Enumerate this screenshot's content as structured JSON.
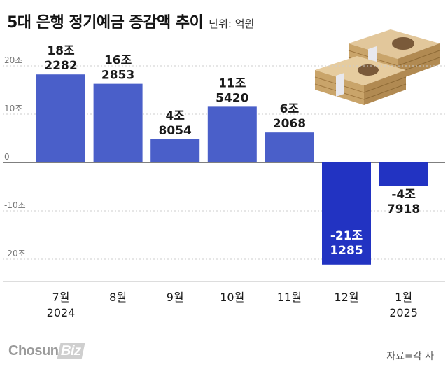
{
  "header": {
    "title": "5대 은행 정기예금 증감액 추이",
    "unit": "단위: 억원"
  },
  "footer": {
    "logo_main": "Chosun",
    "logo_box": "Biz",
    "source": "자료=각 사"
  },
  "chart_data": {
    "type": "bar",
    "title": "5대 은행 정기예금 증감액 추이",
    "unit": "억원",
    "categories": [
      "7월",
      "8월",
      "9월",
      "10월",
      "11월",
      "12월",
      "1월"
    ],
    "year_labels": [
      "2024",
      "",
      "",
      "",
      "",
      "",
      "2025"
    ],
    "values": [
      182282,
      162853,
      48054,
      115420,
      62068,
      -211285,
      -47918
    ],
    "value_labels": [
      [
        "18조",
        "2282"
      ],
      [
        "16조",
        "2853"
      ],
      [
        "4조",
        "8054"
      ],
      [
        "11조",
        "5420"
      ],
      [
        "6조",
        "2068"
      ],
      [
        "-21조",
        "1285"
      ],
      [
        "-4조",
        "7918"
      ]
    ],
    "yticks": [
      20,
      10,
      0,
      -10,
      -20
    ],
    "ytick_labels": [
      "20조",
      "10조",
      "0",
      "-10조",
      "-20조"
    ],
    "ylim": [
      -24,
      26
    ],
    "colors": {
      "positive": "#4a5fc9",
      "negative": "#2233c2",
      "gridline": "#cccccc",
      "zero_line": "#333333"
    },
    "grid": false
  }
}
